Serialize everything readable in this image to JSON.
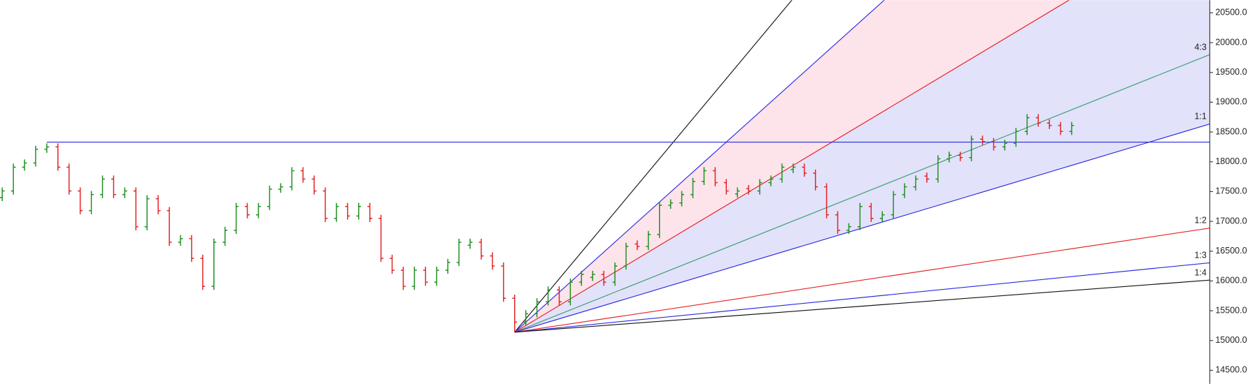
{
  "chart_data": {
    "type": "ohlc",
    "up_color": "#1f8f1f",
    "down_color": "#e32222",
    "xlim": [
      -0.2,
      108.4
    ],
    "ylim": [
      14273,
      20713
    ],
    "yticks": [
      {
        "value": 20500,
        "label": "20500.0"
      },
      {
        "value": 20000,
        "label": "20000.0"
      },
      {
        "value": 19500,
        "label": "19500.0"
      },
      {
        "value": 19000,
        "label": "19000.0"
      },
      {
        "value": 18500,
        "label": "18500.0"
      },
      {
        "value": 18000,
        "label": "18000.0"
      },
      {
        "value": 17500,
        "label": "17500.0"
      },
      {
        "value": 17000,
        "label": "17000.0"
      },
      {
        "value": 16500,
        "label": "16500.0"
      },
      {
        "value": 16000,
        "label": "16000.0"
      },
      {
        "value": 15500,
        "label": "15500.0"
      },
      {
        "value": 15000,
        "label": "15000.0"
      },
      {
        "value": 14500,
        "label": "14500.0"
      }
    ],
    "open": [
      17400,
      17510,
      17910,
      17980,
      18210,
      18250,
      17910,
      17510,
      17180,
      17450,
      17710,
      17450,
      17510,
      16910,
      17380,
      17180,
      16650,
      16710,
      16380,
      15910,
      16650,
      16850,
      17250,
      17110,
      17250,
      17540,
      17580,
      17850,
      17710,
      17510,
      17050,
      17250,
      17090,
      17250,
      17050,
      16380,
      16180,
      15910,
      16180,
      15980,
      16180,
      16310,
      16600,
      16650,
      16420,
      16250,
      15710,
      15310,
      15450,
      15650,
      15850,
      15650,
      15980,
      16060,
      16110,
      15980,
      16250,
      16620,
      16580,
      16780,
      17270,
      17310,
      17450,
      17670,
      17850,
      17650,
      17460,
      17550,
      17510,
      17650,
      17710,
      17870,
      17910,
      17810,
      17580,
      17110,
      16850,
      16910,
      17250,
      17050,
      17110,
      17450,
      17580,
      17760,
      17710,
      18050,
      18110,
      18070,
      18380,
      18340,
      18250,
      18310,
      18510,
      18740,
      18650,
      18610,
      18510
    ],
    "high": [
      17570,
      17970,
      18040,
      18270,
      18310,
      18310,
      17970,
      17570,
      17510,
      17770,
      17770,
      17570,
      17570,
      17440,
      17440,
      17240,
      16770,
      16770,
      16440,
      16710,
      16910,
      17310,
      17310,
      17310,
      17600,
      17640,
      17910,
      17910,
      17770,
      17570,
      17310,
      17310,
      17310,
      17310,
      17110,
      16440,
      16240,
      16240,
      16240,
      16240,
      16370,
      16710,
      16710,
      16710,
      16480,
      16310,
      15770,
      15510,
      15710,
      15910,
      15910,
      16040,
      16170,
      16170,
      16170,
      16310,
      16640,
      16680,
      16840,
      17330,
      17370,
      17510,
      17730,
      17910,
      17910,
      17710,
      17570,
      17610,
      17710,
      17770,
      17970,
      17970,
      17970,
      17870,
      17640,
      17170,
      16970,
      17310,
      17310,
      17170,
      17510,
      17640,
      17770,
      17820,
      18110,
      18170,
      18170,
      18440,
      18440,
      18400,
      18370,
      18570,
      18800,
      18800,
      18710,
      18670,
      18670
    ],
    "low": [
      17340,
      17450,
      17850,
      17920,
      18150,
      17850,
      17450,
      17120,
      17120,
      17390,
      17390,
      17390,
      16850,
      16850,
      17120,
      16590,
      16590,
      16320,
      15850,
      15850,
      16590,
      16790,
      17050,
      17050,
      17190,
      17480,
      17520,
      17650,
      17450,
      16990,
      16990,
      17030,
      17030,
      16990,
      16320,
      16120,
      15850,
      15850,
      15920,
      15920,
      16120,
      16250,
      16540,
      16360,
      16190,
      15650,
      15140,
      15250,
      15390,
      15590,
      15590,
      15590,
      15920,
      16000,
      15920,
      15920,
      16190,
      16520,
      16520,
      16720,
      17210,
      17250,
      17390,
      17610,
      17590,
      17450,
      17400,
      17450,
      17450,
      17590,
      17650,
      17810,
      17750,
      17520,
      17050,
      16790,
      16790,
      16850,
      16990,
      16990,
      17050,
      17390,
      17520,
      17650,
      17650,
      17990,
      18010,
      18010,
      18280,
      18190,
      18190,
      18250,
      18450,
      18590,
      18550,
      18450,
      18450
    ],
    "close": [
      17510,
      17910,
      17980,
      18210,
      18250,
      17910,
      17510,
      17180,
      17450,
      17710,
      17450,
      17510,
      16910,
      17380,
      17180,
      16650,
      16710,
      16380,
      15910,
      16650,
      16850,
      17250,
      17110,
      17250,
      17540,
      17580,
      17850,
      17710,
      17510,
      17050,
      17250,
      17090,
      17250,
      17050,
      16380,
      16180,
      15910,
      16180,
      15980,
      16180,
      16310,
      16650,
      16650,
      16420,
      16250,
      15710,
      15310,
      15450,
      15650,
      15850,
      15650,
      15980,
      16110,
      16110,
      15980,
      16250,
      16580,
      16580,
      16780,
      17270,
      17310,
      17450,
      17670,
      17850,
      17650,
      17510,
      17510,
      17510,
      17650,
      17710,
      17910,
      17910,
      17810,
      17580,
      17110,
      16850,
      16910,
      17250,
      17050,
      17110,
      17450,
      17580,
      17710,
      17710,
      18050,
      18110,
      18070,
      18380,
      18340,
      18250,
      18310,
      18510,
      18740,
      18650,
      18610,
      18510,
      18610
    ],
    "hline": {
      "value": 18330,
      "start_bar": 4,
      "color": "#2a2ae0"
    },
    "fan": {
      "origin_bar": 46,
      "origin_price": 15140,
      "unit": 56,
      "rays": [
        {
          "rise": 4,
          "run": 1,
          "color": "#111111"
        },
        {
          "rise": 3,
          "run": 1,
          "color": "#2a2ae0"
        },
        {
          "rise": 2,
          "run": 1,
          "color": "#e32222"
        },
        {
          "rise": 4,
          "run": 3,
          "color": "#3a9a6a",
          "label": "4:3"
        },
        {
          "rise": 1,
          "run": 1,
          "color": "#2a2ae0",
          "label": "1:1"
        },
        {
          "rise": 1,
          "run": 2,
          "color": "#e32222",
          "label": "1:2"
        },
        {
          "rise": 1,
          "run": 3,
          "color": "#2a2ae0",
          "label": "1:3"
        },
        {
          "rise": 1,
          "run": 4,
          "color": "#111111",
          "label": "1:4"
        }
      ],
      "bands": [
        {
          "rays": [
            1,
            2
          ],
          "color": "#fde3ea"
        },
        {
          "rays": [
            2,
            4
          ],
          "color": "#e2e2fb"
        }
      ]
    }
  }
}
